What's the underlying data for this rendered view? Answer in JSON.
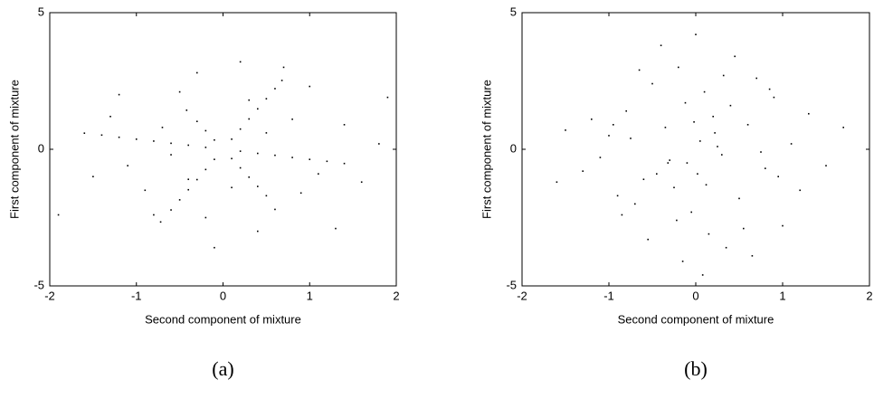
{
  "chart_data": [
    {
      "type": "scatter",
      "caption": "(a)",
      "x_label": "Second component of mixture",
      "y_label": "First component of mixture",
      "xlim": [
        -2,
        2
      ],
      "ylim": [
        -5,
        5
      ],
      "xticks": [
        -2,
        -1,
        0,
        1,
        2
      ],
      "yticks": [
        -5,
        0,
        5
      ],
      "color": "#000000",
      "x": [
        -1.6,
        -1.4,
        -1.2,
        -1.0,
        -0.8,
        -0.6,
        -0.4,
        -0.2,
        0.2,
        0.4,
        0.6,
        0.8,
        1.0,
        1.2,
        1.4,
        -0.72,
        -0.6,
        -0.5,
        -0.4,
        -0.3,
        -0.2,
        -0.1,
        0.1,
        0.2,
        0.3,
        0.4,
        0.5,
        0.6,
        0.68,
        -0.42,
        -0.3,
        -0.2,
        -0.1,
        0.1,
        0.2,
        0.3,
        0.4,
        0.5,
        -1.3,
        -0.9,
        -0.5,
        0.3,
        0.8,
        1.1,
        0.6,
        -0.2,
        -1.1,
        1.4,
        -0.7,
        0.2,
        -0.1,
        1.0,
        -1.5,
        0.9,
        -0.4,
        0.5,
        -0.8,
        1.6,
        -1.2,
        0.1,
        0.7,
        -0.3,
        1.9,
        -1.9,
        1.3,
        0.4,
        -0.6,
        1.8
      ],
      "values": [
        0.59,
        0.52,
        0.44,
        0.37,
        0.3,
        0.22,
        0.15,
        0.07,
        -0.07,
        -0.15,
        -0.22,
        -0.3,
        -0.37,
        -0.44,
        -0.52,
        -2.66,
        -2.22,
        -1.85,
        -1.48,
        -1.11,
        -0.74,
        -0.37,
        0.37,
        0.74,
        1.11,
        1.48,
        1.85,
        2.22,
        2.52,
        1.43,
        1.02,
        0.68,
        0.34,
        -0.34,
        -0.68,
        -1.02,
        -1.36,
        -1.7,
        1.2,
        -1.5,
        2.1,
        1.8,
        1.1,
        -0.9,
        -2.2,
        -2.5,
        -0.6,
        0.9,
        0.8,
        3.2,
        -3.6,
        2.3,
        -1.0,
        -1.6,
        -1.1,
        0.6,
        -2.4,
        -1.2,
        2.0,
        -1.4,
        3.0,
        2.8,
        1.9,
        -2.4,
        -2.9,
        -3.0,
        -0.2,
        0.2
      ]
    },
    {
      "type": "scatter",
      "caption": "(b)",
      "x_label": "Second component of mixture",
      "y_label": "First component of mixture",
      "xlim": [
        -2,
        2
      ],
      "ylim": [
        -5,
        5
      ],
      "xticks": [
        -2,
        -1,
        0,
        1,
        2
      ],
      "yticks": [
        -5,
        0,
        5
      ],
      "color": "#000000",
      "x": [
        0.05,
        -0.1,
        0.2,
        -0.25,
        0.3,
        -0.35,
        0.1,
        -0.05,
        0.4,
        -0.45,
        0.5,
        -0.5,
        0.15,
        -0.2,
        0.25,
        -0.3,
        0.6,
        -0.6,
        0.7,
        -0.7,
        0.8,
        -0.8,
        0.9,
        -0.9,
        1.0,
        -1.0,
        1.1,
        -1.1,
        1.2,
        -1.2,
        0.0,
        0.35,
        -0.15,
        0.45,
        -0.4,
        0.55,
        -0.55,
        0.65,
        -0.65,
        0.75,
        -0.75,
        0.85,
        -0.85,
        1.3,
        -1.3,
        1.5,
        -1.5,
        0.02,
        -0.02,
        0.12,
        -0.12,
        0.22,
        -0.22,
        0.32,
        -0.32,
        1.7,
        -1.6,
        0.95,
        -0.95,
        0.08
      ],
      "values": [
        0.3,
        -0.5,
        1.2,
        -1.4,
        -0.2,
        0.8,
        2.1,
        -2.3,
        1.6,
        -0.9,
        -1.8,
        2.4,
        -3.1,
        3.0,
        0.1,
        -0.4,
        0.9,
        -1.1,
        2.6,
        -2.0,
        -0.7,
        1.4,
        1.9,
        -1.7,
        -2.8,
        0.5,
        0.2,
        -0.3,
        -1.5,
        1.1,
        4.2,
        -3.6,
        -4.1,
        3.4,
        3.8,
        -2.9,
        -3.3,
        -3.9,
        2.9,
        -0.1,
        0.4,
        2.2,
        -2.4,
        1.3,
        -0.8,
        -0.6,
        0.7,
        -0.9,
        1.0,
        -1.3,
        1.7,
        0.6,
        -2.6,
        2.7,
        -0.5,
        0.8,
        -1.2,
        -1.0,
        0.9,
        -4.6
      ]
    }
  ]
}
